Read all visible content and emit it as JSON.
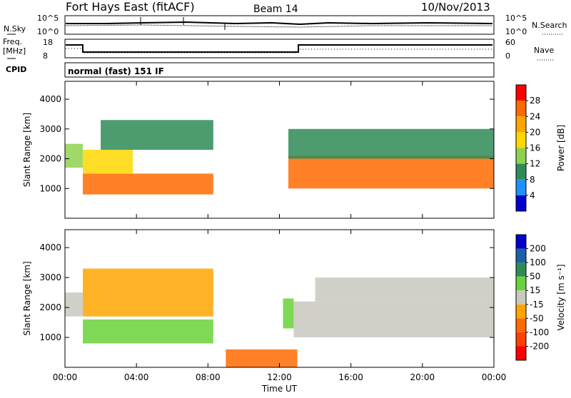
{
  "header": {
    "radar": "Fort Hays East (fitACF)",
    "beam": "Beam 14",
    "date": "10/Nov/2013"
  },
  "strips": {
    "nsky_label": "N.Sky",
    "nsky_tick_hi": "10^5",
    "nsky_tick_lo": "10^0",
    "nsearch_label": "N.Search",
    "freq_label": "Freq.",
    "freq_unit": "[MHz]",
    "freq_tick_hi": "18",
    "freq_tick_lo": "8",
    "nave_label": "Nave",
    "nave_tick_hi": "60",
    "nave_tick_lo": "0",
    "cpid_label": "CPID",
    "cpid_value": "normal (fast) 151 IF"
  },
  "power_legend": {
    "title": "Power [dB]",
    "ticks": [
      "28",
      "24",
      "20",
      "16",
      "12",
      "8",
      "4"
    ],
    "colors": [
      "#ff0000",
      "#ff6a00",
      "#ffa500",
      "#ffd700",
      "#8fd14f",
      "#2e8b57",
      "#1e90ff",
      "#0000cd"
    ]
  },
  "velocity_legend": {
    "title": "Velocity [m s⁻¹]",
    "ticks": [
      "200",
      "100",
      "50",
      "15",
      "-15",
      "-50",
      "-100",
      "-200"
    ],
    "colors": [
      "#0000cd",
      "#1e5fa8",
      "#2e8b57",
      "#6ad13a",
      "#c8c8c0",
      "#ffa500",
      "#ff6a00",
      "#ff4000",
      "#ff0000"
    ]
  },
  "chart_data": [
    {
      "type": "heatmap",
      "name": "power",
      "xlabel": "Time UT",
      "ylabel": "Slant Range [km]",
      "xlim": [
        0,
        24
      ],
      "ylim": [
        0,
        4600
      ],
      "x_ticks": [
        "00:00",
        "04:00",
        "08:00",
        "12:00",
        "16:00",
        "20:00",
        "00:00"
      ],
      "y_ticks": [
        1000,
        2000,
        3000,
        4000
      ],
      "bands": [
        {
          "x0": 0.0,
          "x1": 1.0,
          "y0": 1700,
          "y1": 2500,
          "value": 14
        },
        {
          "x0": 1.0,
          "x1": 8.3,
          "y0": 800,
          "y1": 1500,
          "value": 24
        },
        {
          "x0": 1.0,
          "x1": 3.8,
          "y0": 1500,
          "y1": 2300,
          "value": 16
        },
        {
          "x0": 2.0,
          "x1": 8.3,
          "y0": 2300,
          "y1": 3300,
          "value": 10
        },
        {
          "x0": 12.5,
          "x1": 24.0,
          "y0": 1000,
          "y1": 2100,
          "value": 24
        },
        {
          "x0": 12.5,
          "x1": 24.0,
          "y0": 2000,
          "y1": 3000,
          "value": 10
        }
      ]
    },
    {
      "type": "heatmap",
      "name": "velocity",
      "xlabel": "Time UT",
      "ylabel": "Slant Range [km]",
      "xlim": [
        0,
        24
      ],
      "ylim": [
        0,
        4600
      ],
      "x_ticks": [
        "00:00",
        "04:00",
        "08:00",
        "12:00",
        "16:00",
        "20:00",
        "00:00"
      ],
      "y_ticks": [
        1000,
        2000,
        3000,
        4000
      ],
      "bands": [
        {
          "x0": 0.0,
          "x1": 1.0,
          "y0": 1700,
          "y1": 2500,
          "value": 0
        },
        {
          "x0": 1.0,
          "x1": 8.3,
          "y0": 800,
          "y1": 1600,
          "value": 40
        },
        {
          "x0": 1.0,
          "x1": 8.3,
          "y0": 1700,
          "y1": 3300,
          "value": -20
        },
        {
          "x0": 9.0,
          "x1": 13.0,
          "y0": 0,
          "y1": 600,
          "value": -60
        },
        {
          "x0": 12.2,
          "x1": 12.8,
          "y0": 1300,
          "y1": 2300,
          "value": 40
        },
        {
          "x0": 12.8,
          "x1": 24.0,
          "y0": 1000,
          "y1": 2200,
          "value": 0
        },
        {
          "x0": 14.0,
          "x1": 24.0,
          "y0": 2200,
          "y1": 3000,
          "value": 0
        }
      ]
    }
  ]
}
